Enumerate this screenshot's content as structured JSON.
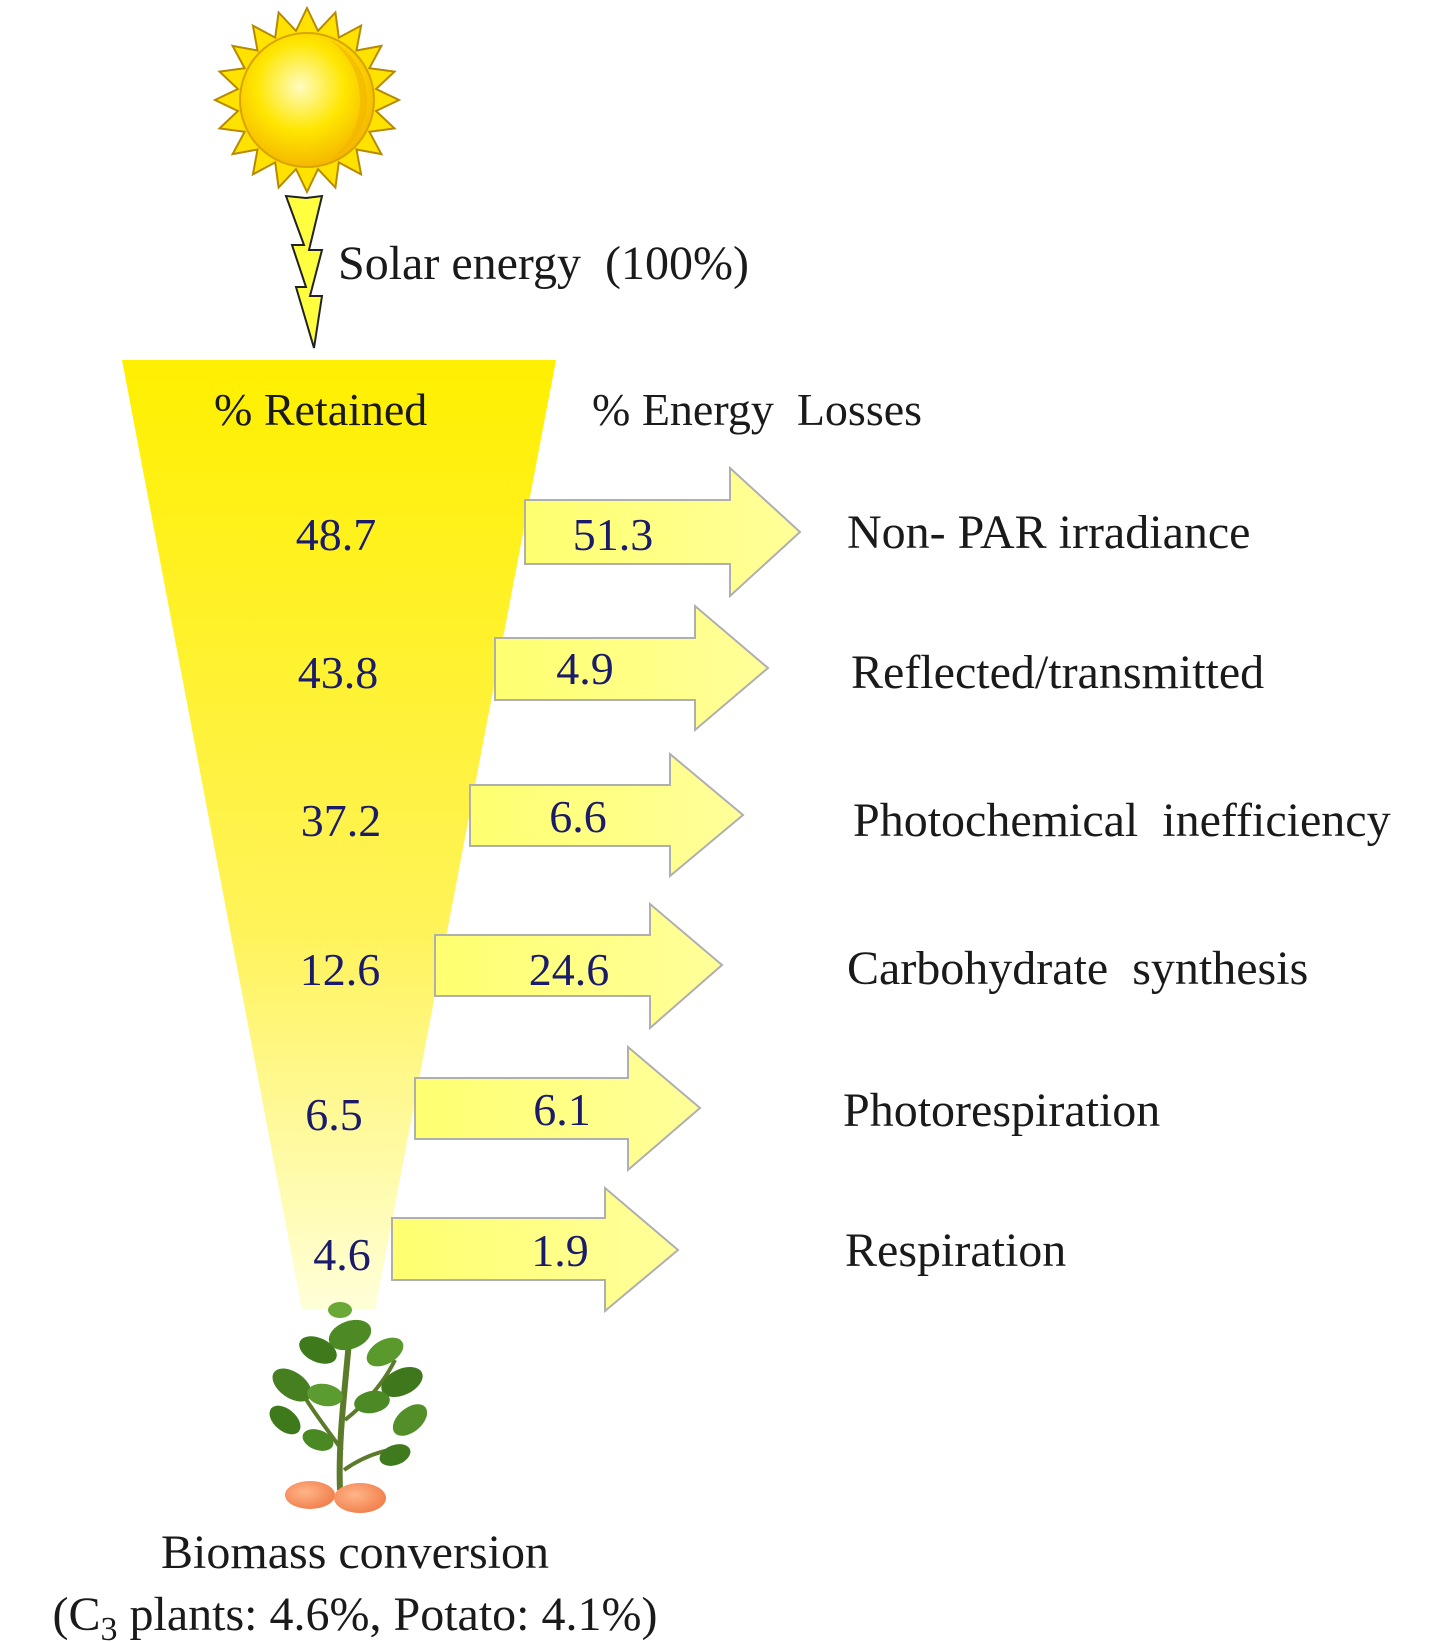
{
  "source": {
    "label": "Solar energy  (100%)",
    "icon": "sun-icon",
    "color": "#FFE600"
  },
  "headers": {
    "retained": "% Retained",
    "losses": "% Energy  Losses"
  },
  "steps": [
    {
      "retained": "48.7",
      "loss": "51.3",
      "process": "Non- PAR irradiance"
    },
    {
      "retained": "43.8",
      "loss": "4.9",
      "process": "Reflected/transmitted"
    },
    {
      "retained": "37.2",
      "loss": "6.6",
      "process": "Photochemical  inefficiency"
    },
    {
      "retained": "12.6",
      "loss": "24.6",
      "process": "Carbohydrate  synthesis"
    },
    {
      "retained": "6.5",
      "loss": "6.1",
      "process": "Photorespiration"
    },
    {
      "retained": "4.6",
      "loss": "1.9",
      "process": "Respiration"
    }
  ],
  "output": {
    "label": "Biomass conversion",
    "note_prefix": "(C",
    "note_sub": "3",
    "note_suffix": " plants: 4.6%, Potato: 4.1%)",
    "icon": "potato-plant-icon"
  },
  "colors": {
    "funnel_top": "#FFF000",
    "funnel_bottom": "#FFFFD0",
    "arrow_fill": "#FFFF80",
    "arrow_stroke": "#B0B0B0",
    "number_text": "#1B1B6B"
  }
}
